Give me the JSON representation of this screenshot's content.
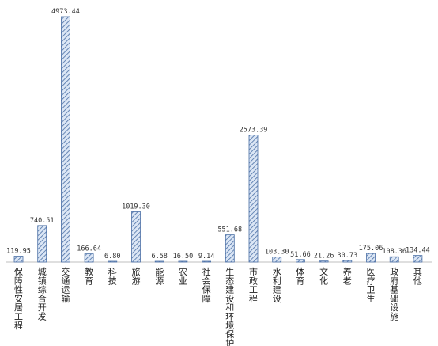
{
  "chart_data": {
    "type": "bar",
    "title": "",
    "xlabel": "",
    "ylabel": "",
    "ylim": [
      0,
      5000
    ],
    "grid": false,
    "legend": "none",
    "bar_fill": "#dbe6f5",
    "bar_stroke": "#4a6fa5",
    "categories": [
      "保障性安居工程",
      "城镇综合开发",
      "交通运输",
      "教育",
      "科技",
      "旅游",
      "能源",
      "农业",
      "社会保障",
      "生态建设和环境保护",
      "市政工程",
      "水利建设",
      "体育",
      "文化",
      "养老",
      "医疗卫生",
      "政府基础设施",
      "其他"
    ],
    "values": [
      119.95,
      740.51,
      4973.44,
      166.64,
      6.8,
      1019.3,
      6.58,
      16.5,
      9.14,
      551.68,
      2573.39,
      103.3,
      51.66,
      21.26,
      30.73,
      175.06,
      108.36,
      134.44
    ],
    "value_labels": [
      "119.95",
      "740.51",
      "4973.44",
      "166.64",
      "6.80",
      "1019.30",
      "6.58",
      "16.50",
      "9.14",
      "551.68",
      "2573.39",
      "103.30",
      "51.66",
      "21.26",
      "30.73",
      "175.06",
      "108.36",
      "134.44"
    ]
  }
}
